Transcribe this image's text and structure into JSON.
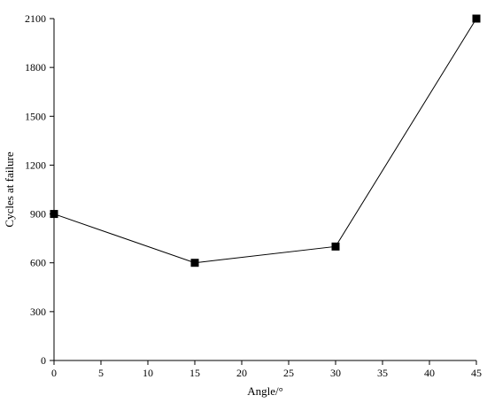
{
  "chart_data": {
    "type": "line",
    "title": "",
    "xlabel": "Angle/°",
    "ylabel": "Cycles at failure",
    "xlim": [
      0,
      45
    ],
    "ylim": [
      0,
      2100
    ],
    "xticks": [
      0,
      5,
      10,
      15,
      20,
      25,
      30,
      35,
      40,
      45
    ],
    "yticks": [
      0,
      300,
      600,
      900,
      1200,
      1500,
      1800,
      2100
    ],
    "grid": false,
    "legend": "none",
    "marker": "square",
    "line_color": "#000000",
    "series": [
      {
        "x": [
          0,
          15,
          30,
          45
        ],
        "y": [
          900,
          600,
          700,
          2100
        ]
      }
    ]
  }
}
